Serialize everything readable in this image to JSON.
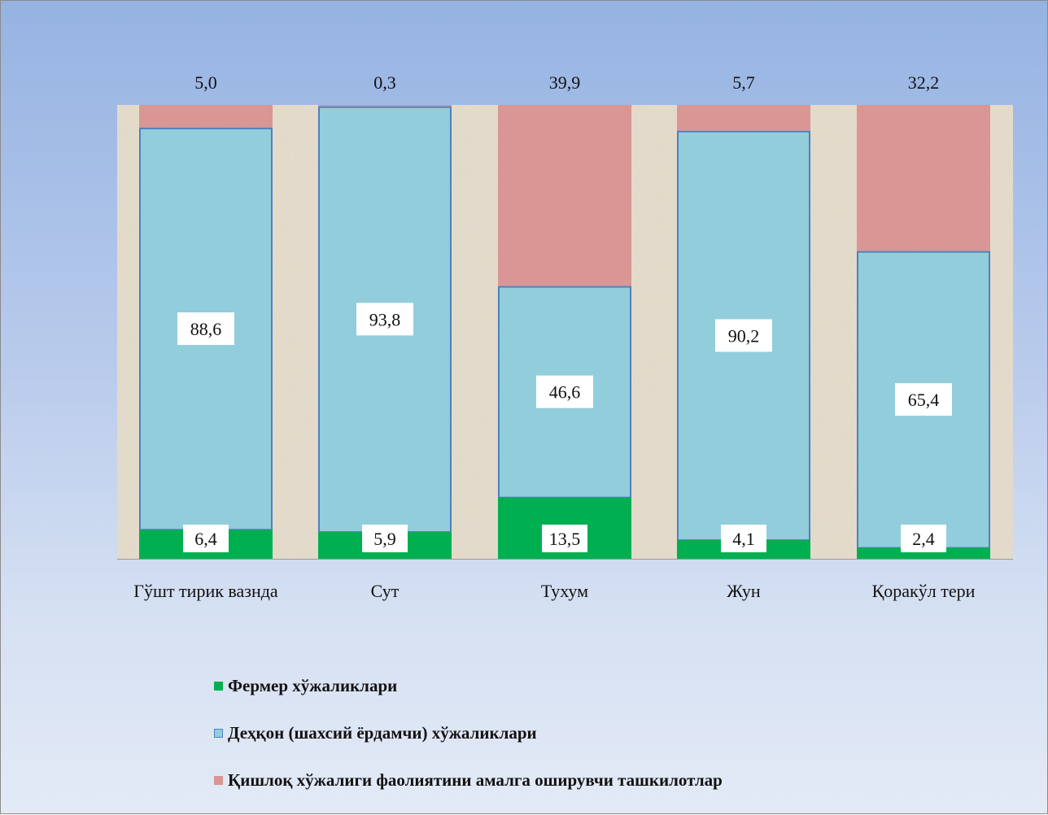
{
  "chart_data": {
    "type": "bar",
    "stacked": true,
    "percent_stacked": true,
    "categories": [
      "Гўшт тирик вазнда",
      "Сут",
      "Тухум",
      "Жун",
      "Қоракўл тери"
    ],
    "series": [
      {
        "name": "Фермер хўжаликлари",
        "values": [
          "6,4",
          "5,9",
          "13,5",
          "4,1",
          "2,4"
        ],
        "numeric": [
          6.4,
          5.9,
          13.5,
          4.1,
          2.4
        ],
        "color": "#00b050"
      },
      {
        "name": "Деҳқон (шахсий ёрдамчи) хўжаликлари",
        "values": [
          "88,6",
          "93,8",
          "46,6",
          "90,2",
          "65,4"
        ],
        "numeric": [
          88.6,
          93.8,
          46.6,
          90.2,
          65.4
        ],
        "color": "#92cddc",
        "border": "#4f81bd"
      },
      {
        "name": "Қишлоқ хўжалиги фаолиятини амалга оширувчи ташкилотлар",
        "values": [
          "5,0",
          "0,3",
          "39,9",
          "5,7",
          "32,2"
        ],
        "numeric": [
          5.0,
          0.3,
          39.9,
          5.7,
          32.2
        ],
        "color": "#d99694"
      }
    ],
    "ylim": [
      0,
      100
    ],
    "title": "",
    "xlabel": "",
    "ylabel": "",
    "legend_position": "bottom",
    "grid": false,
    "plot_area_fill": "beige-granite-texture"
  }
}
